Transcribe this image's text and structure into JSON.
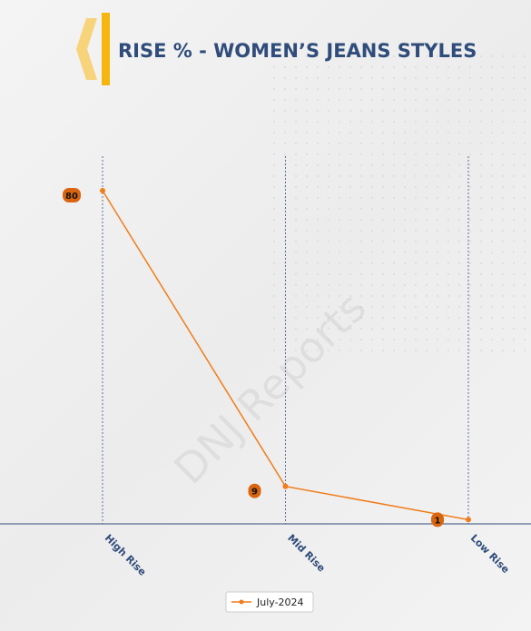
{
  "chart_data": {
    "type": "line",
    "title": "RISE % - WOMEN’S JEANS STYLES",
    "watermark": "DNJ Reports",
    "categories": [
      "High Rise",
      "Mid Rise",
      "Low Rise"
    ],
    "series": [
      {
        "name": "July-2024",
        "color": "#f07d1a",
        "values": [
          80,
          9,
          1
        ]
      }
    ],
    "legend": "bottom",
    "grid": true
  }
}
